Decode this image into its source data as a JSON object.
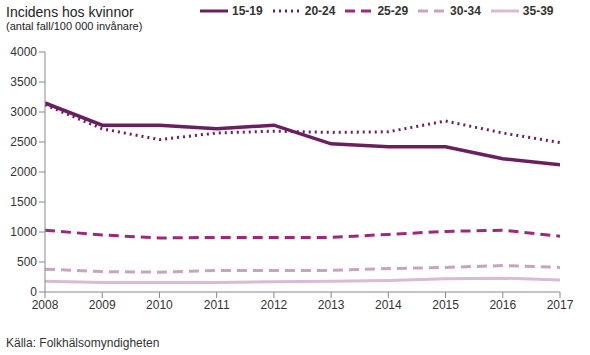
{
  "chart_data": {
    "type": "line",
    "title": "Incidens hos kvinnor",
    "subtitle": "(antal fall/100 000 invånare)",
    "source": "Källa: Folkhälsomyndigheten",
    "x": [
      2008,
      2009,
      2010,
      2011,
      2012,
      2013,
      2014,
      2015,
      2016,
      2017
    ],
    "xlim": [
      2008,
      2017
    ],
    "xticks": [
      2008,
      2009,
      2010,
      2011,
      2012,
      2013,
      2014,
      2015,
      2016,
      2017
    ],
    "ylim": [
      0,
      4000
    ],
    "yticks": [
      0,
      500,
      1000,
      1500,
      2000,
      2500,
      3000,
      3500,
      4000
    ],
    "grid": false,
    "legend": "top",
    "series": [
      {
        "name": "15-19",
        "color": "#6b1f5e",
        "line_style": "solid",
        "values": [
          3150,
          2780,
          2780,
          2720,
          2780,
          2470,
          2420,
          2420,
          2220,
          2120
        ]
      },
      {
        "name": "20-24",
        "color": "#6b1f5e",
        "line_style": "dotted",
        "values": [
          3120,
          2720,
          2540,
          2650,
          2680,
          2660,
          2670,
          2850,
          2650,
          2490
        ]
      },
      {
        "name": "25-29",
        "color": "#9b2a7f",
        "line_style": "dashed",
        "values": [
          1030,
          950,
          900,
          910,
          910,
          910,
          960,
          1010,
          1030,
          930
        ]
      },
      {
        "name": "30-34",
        "color": "#c9a4c0",
        "line_style": "dashed",
        "values": [
          380,
          340,
          330,
          360,
          360,
          360,
          390,
          410,
          440,
          410
        ]
      },
      {
        "name": "35-39",
        "color": "#d9bbd2",
        "line_style": "solid",
        "values": [
          180,
          160,
          160,
          160,
          170,
          180,
          190,
          220,
          230,
          200
        ]
      }
    ]
  }
}
